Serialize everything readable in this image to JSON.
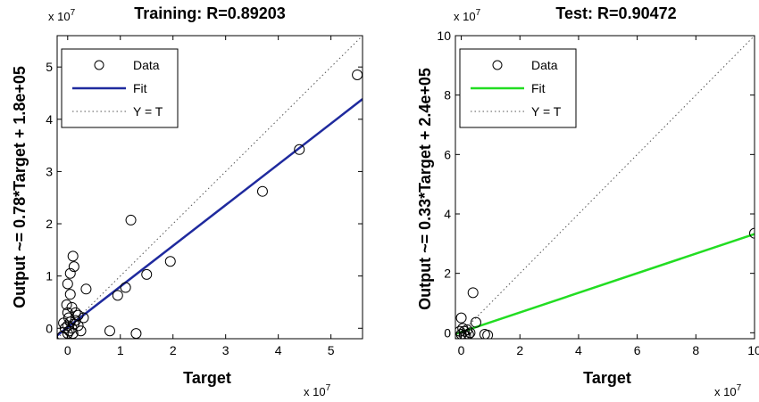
{
  "chart_data": [
    {
      "type": "scatter",
      "title": "Training: R=0.89203",
      "xlabel": "Target",
      "ylabel": "Output ~= 0.78*Target + 1.8e+05",
      "x_multiplier": "x 10",
      "y_multiplier": "x 10",
      "multiplier_exponent": "7",
      "xlim": [
        -0.2,
        5.6
      ],
      "ylim": [
        -0.2,
        5.6
      ],
      "scale_factor": 10000000,
      "xticks": [
        {
          "value": 0,
          "label": "0"
        },
        {
          "value": 1,
          "label": "1"
        },
        {
          "value": 2,
          "label": "2"
        },
        {
          "value": 3,
          "label": "3"
        },
        {
          "value": 4,
          "label": "4"
        },
        {
          "value": 5,
          "label": "5"
        }
      ],
      "yticks": [
        {
          "value": 0,
          "label": "0"
        },
        {
          "value": 1,
          "label": "1"
        },
        {
          "value": 2,
          "label": "2"
        },
        {
          "value": 3,
          "label": "3"
        },
        {
          "value": 4,
          "label": "4"
        },
        {
          "value": 5,
          "label": "5"
        }
      ],
      "fit": {
        "slope": 0.78,
        "intercept": 0.018,
        "color": "#1f2a9e"
      },
      "identity_line": true,
      "legend": {
        "placement": "top-left",
        "entries": [
          {
            "kind": "marker",
            "label": "Data"
          },
          {
            "kind": "fit",
            "label": "Fit"
          },
          {
            "kind": "identity",
            "label": "Y = T"
          }
        ]
      },
      "points": [
        [
          5.5,
          4.85
        ],
        [
          4.4,
          3.42
        ],
        [
          3.7,
          2.62
        ],
        [
          1.2,
          2.07
        ],
        [
          1.95,
          1.28
        ],
        [
          1.5,
          1.03
        ],
        [
          1.1,
          0.78
        ],
        [
          0.95,
          0.63
        ],
        [
          0.8,
          -0.05
        ],
        [
          1.3,
          -0.1
        ],
        [
          0.35,
          0.75
        ],
        [
          0.3,
          0.2
        ],
        [
          0.1,
          1.38
        ],
        [
          0.12,
          1.18
        ],
        [
          0.05,
          1.05
        ],
        [
          0.0,
          0.85
        ],
        [
          0.05,
          0.65
        ],
        [
          -0.02,
          0.45
        ],
        [
          0.08,
          0.4
        ],
        [
          0.0,
          0.3
        ],
        [
          0.02,
          0.2
        ],
        [
          0.05,
          0.12
        ],
        [
          0.0,
          0.05
        ],
        [
          -0.05,
          0.0
        ],
        [
          0.03,
          -0.05
        ],
        [
          0.08,
          0.0
        ],
        [
          0.12,
          0.08
        ],
        [
          0.15,
          0.15
        ],
        [
          0.2,
          0.05
        ],
        [
          0.25,
          -0.05
        ],
        [
          0.1,
          -0.1
        ],
        [
          -0.08,
          0.1
        ],
        [
          0.0,
          -0.1
        ],
        [
          0.15,
          0.3
        ],
        [
          0.2,
          0.25
        ],
        [
          -0.1,
          -0.15
        ]
      ]
    },
    {
      "type": "scatter",
      "title": "Test: R=0.90472",
      "xlabel": "Target",
      "ylabel": "Output ~= 0.33*Target + 2.4e+05",
      "x_multiplier": "x 10",
      "y_multiplier": "x 10",
      "multiplier_exponent": "7",
      "xlim": [
        -0.2,
        10
      ],
      "ylim": [
        -0.2,
        10
      ],
      "scale_factor": 10000000,
      "xticks": [
        {
          "value": 0,
          "label": "0"
        },
        {
          "value": 2,
          "label": "2"
        },
        {
          "value": 4,
          "label": "4"
        },
        {
          "value": 6,
          "label": "6"
        },
        {
          "value": 8,
          "label": "8"
        },
        {
          "value": 10,
          "label": "10"
        }
      ],
      "yticks": [
        {
          "value": 0,
          "label": "0"
        },
        {
          "value": 2,
          "label": "2"
        },
        {
          "value": 4,
          "label": "4"
        },
        {
          "value": 6,
          "label": "6"
        },
        {
          "value": 8,
          "label": "8"
        },
        {
          "value": 10,
          "label": "10"
        }
      ],
      "fit": {
        "slope": 0.33,
        "intercept": 0.024,
        "color": "#22dd22"
      },
      "identity_line": true,
      "legend": {
        "placement": "top-left",
        "entries": [
          {
            "kind": "marker",
            "label": "Data"
          },
          {
            "kind": "fit",
            "label": "Fit"
          },
          {
            "kind": "identity",
            "label": "Y = T"
          }
        ]
      },
      "points": [
        [
          10,
          3.35
        ],
        [
          0.4,
          1.35
        ],
        [
          0.0,
          0.5
        ],
        [
          0.5,
          0.35
        ],
        [
          0.8,
          -0.05
        ],
        [
          0.9,
          -0.08
        ],
        [
          0.05,
          0.15
        ],
        [
          0.1,
          0.05
        ],
        [
          0.0,
          -0.05
        ],
        [
          0.15,
          -0.1
        ],
        [
          0.3,
          0.0
        ],
        [
          0.2,
          0.1
        ],
        [
          -0.05,
          0.05
        ],
        [
          0.1,
          -0.08
        ],
        [
          0.25,
          -0.05
        ]
      ]
    }
  ]
}
